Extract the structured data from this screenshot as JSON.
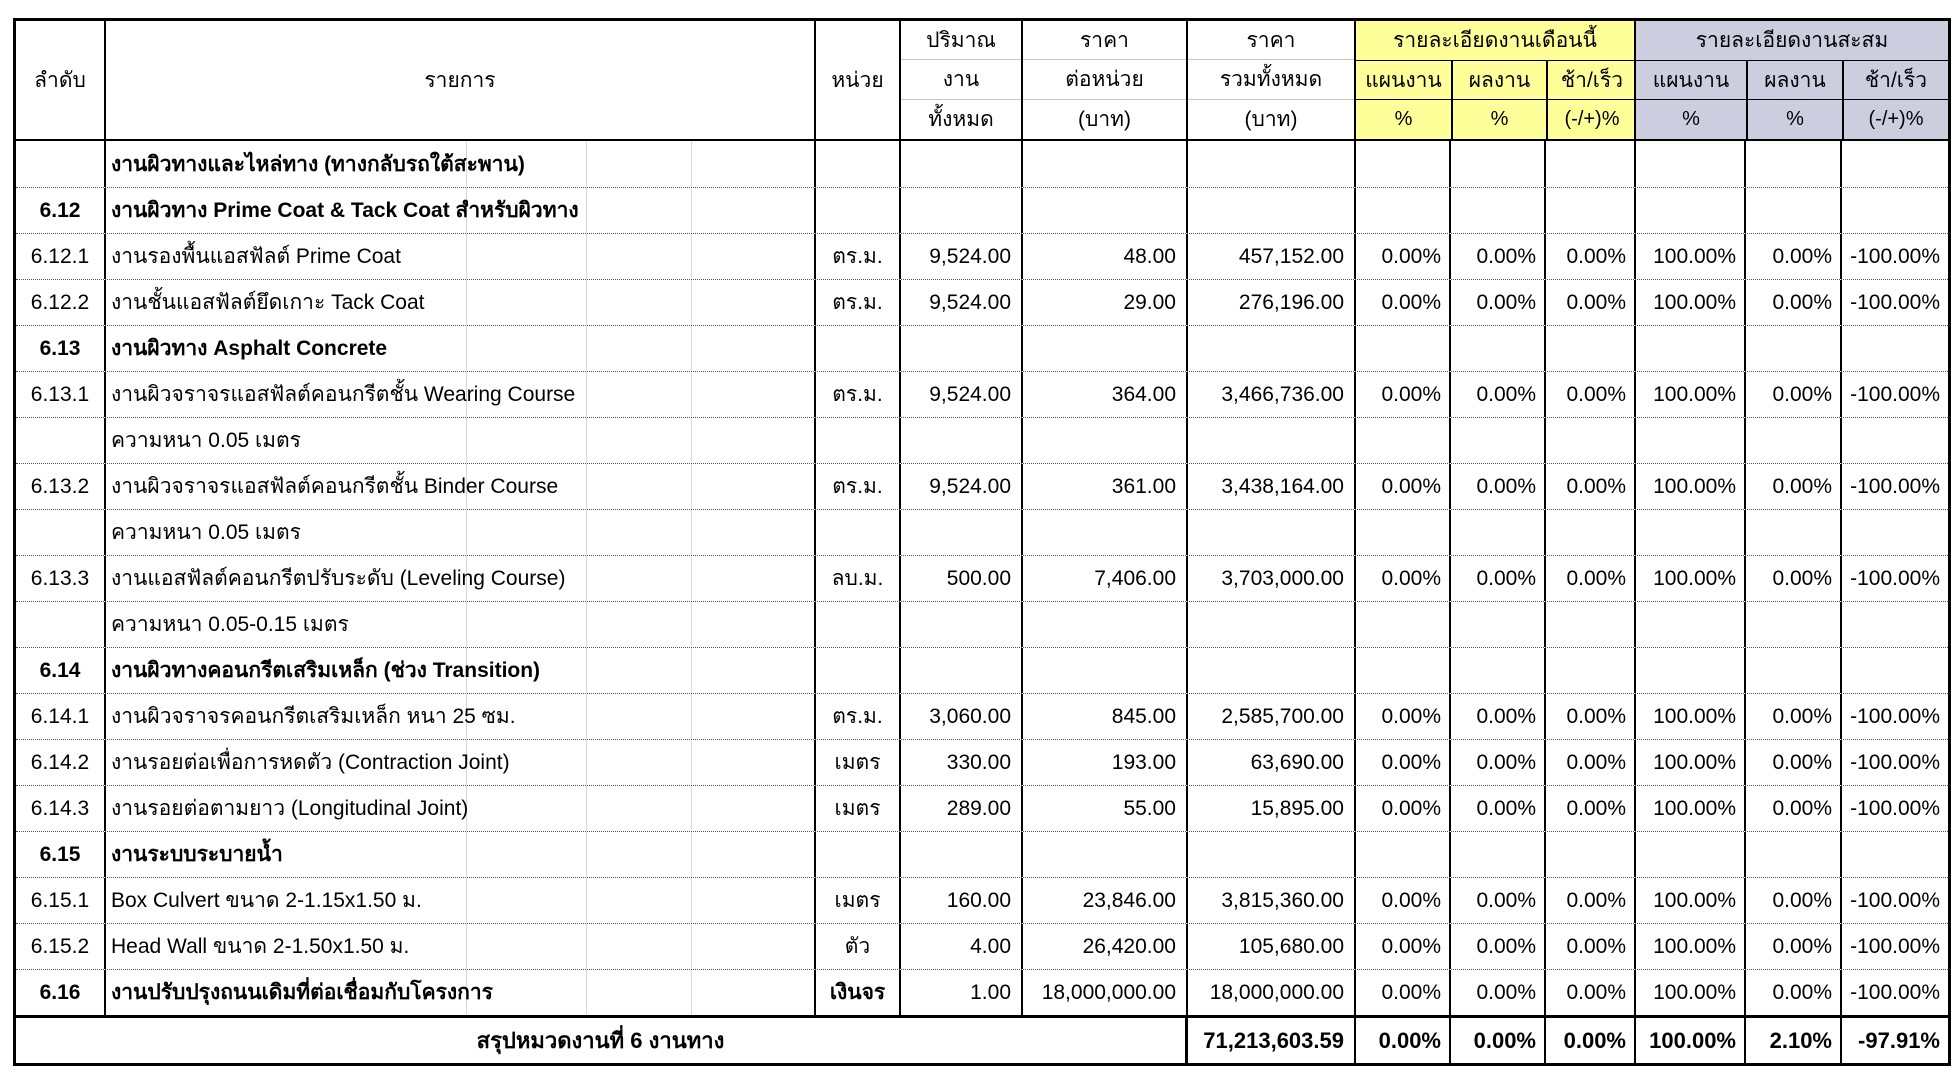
{
  "colors": {
    "month_header_bg": "#FFFF99",
    "cum_header_bg": "#CDCDE0"
  },
  "header": {
    "col_no": "ลำดับ",
    "col_item": "รายการ",
    "col_unit": "หน่วย",
    "col_qty": [
      "ปริมาณ",
      "งาน",
      "ทั้งหมด"
    ],
    "col_unit_price": [
      "ราคา",
      "ต่อหน่วย",
      "(บาท)"
    ],
    "col_total_price": [
      "ราคา",
      "รวมทั้งหมด",
      "(บาท)"
    ],
    "month_group": {
      "title": "รายละเอียดงานเดือนนี้",
      "cols": [
        {
          "label": "แผนงาน",
          "sub": "%"
        },
        {
          "label": "ผลงาน",
          "sub": "%"
        },
        {
          "label": "ช้า/เร็ว",
          "sub": "(-/+)%"
        }
      ]
    },
    "cum_group": {
      "title": "รายละเอียดงานสะสม",
      "cols": [
        {
          "label": "แผนงาน",
          "sub": "%"
        },
        {
          "label": "ผลงาน",
          "sub": "%"
        },
        {
          "label": "ช้า/เร็ว",
          "sub": "(-/+)%"
        }
      ]
    }
  },
  "rows": [
    {
      "no": "",
      "item": "งานผิวทางและไหล่ทาง (ทางกลับรถใต้สะพาน)",
      "unit": "",
      "qty": "",
      "price": "",
      "total": "",
      "mp": "",
      "ma": "",
      "md": "",
      "cp": "",
      "ca": "",
      "cd": "",
      "bold": true
    },
    {
      "no": "6.12",
      "item": "งานผิวทาง Prime Coat & Tack Coat สำหรับผิวทาง",
      "unit": "",
      "qty": "",
      "price": "",
      "total": "",
      "mp": "",
      "ma": "",
      "md": "",
      "cp": "",
      "ca": "",
      "cd": "",
      "bold": true
    },
    {
      "no": "6.12.1",
      "item": "งานรองพื้นแอสฟัลต์ Prime Coat",
      "unit": "ตร.ม.",
      "qty": "9,524.00",
      "price": "48.00",
      "total": "457,152.00",
      "mp": "0.00%",
      "ma": "0.00%",
      "md": "0.00%",
      "cp": "100.00%",
      "ca": "0.00%",
      "cd": "-100.00%",
      "bold": false
    },
    {
      "no": "6.12.2",
      "item": "งานชั้นแอสฟัลต์ยึดเกาะ Tack Coat",
      "unit": "ตร.ม.",
      "qty": "9,524.00",
      "price": "29.00",
      "total": "276,196.00",
      "mp": "0.00%",
      "ma": "0.00%",
      "md": "0.00%",
      "cp": "100.00%",
      "ca": "0.00%",
      "cd": "-100.00%",
      "bold": false
    },
    {
      "no": "6.13",
      "item": "งานผิวทาง Asphalt Concrete",
      "unit": "",
      "qty": "",
      "price": "",
      "total": "",
      "mp": "",
      "ma": "",
      "md": "",
      "cp": "",
      "ca": "",
      "cd": "",
      "bold": true
    },
    {
      "no": "6.13.1",
      "item": "งานผิวจราจรแอสฟัลต์คอนกรีตชั้น  Wearing Course",
      "unit": "ตร.ม.",
      "qty": "9,524.00",
      "price": "364.00",
      "total": "3,466,736.00",
      "mp": "0.00%",
      "ma": "0.00%",
      "md": "0.00%",
      "cp": "100.00%",
      "ca": "0.00%",
      "cd": "-100.00%",
      "bold": false
    },
    {
      "no": "",
      "item": "ความหนา 0.05 เมตร",
      "unit": "",
      "qty": "",
      "price": "",
      "total": "",
      "mp": "",
      "ma": "",
      "md": "",
      "cp": "",
      "ca": "",
      "cd": "",
      "bold": false
    },
    {
      "no": "6.13.2",
      "item": "งานผิวจราจรแอสฟัลต์คอนกรีตชั้น  Binder Course",
      "unit": "ตร.ม.",
      "qty": "9,524.00",
      "price": "361.00",
      "total": "3,438,164.00",
      "mp": "0.00%",
      "ma": "0.00%",
      "md": "0.00%",
      "cp": "100.00%",
      "ca": "0.00%",
      "cd": "-100.00%",
      "bold": false
    },
    {
      "no": "",
      "item": "ความหนา 0.05 เมตร",
      "unit": "",
      "qty": "",
      "price": "",
      "total": "",
      "mp": "",
      "ma": "",
      "md": "",
      "cp": "",
      "ca": "",
      "cd": "",
      "bold": false
    },
    {
      "no": "6.13.3",
      "item": "งานแอสฟัลต์คอนกรีตปรับระดับ (Leveling Course)",
      "unit": "ลบ.ม.",
      "qty": "500.00",
      "price": "7,406.00",
      "total": "3,703,000.00",
      "mp": "0.00%",
      "ma": "0.00%",
      "md": "0.00%",
      "cp": "100.00%",
      "ca": "0.00%",
      "cd": "-100.00%",
      "bold": false
    },
    {
      "no": "",
      "item": "ความหนา 0.05-0.15 เมตร",
      "unit": "",
      "qty": "",
      "price": "",
      "total": "",
      "mp": "",
      "ma": "",
      "md": "",
      "cp": "",
      "ca": "",
      "cd": "",
      "bold": false
    },
    {
      "no": "6.14",
      "item": "งานผิวทางคอนกรีตเสริมเหล็ก (ช่วง Transition)",
      "unit": "",
      "qty": "",
      "price": "",
      "total": "",
      "mp": "",
      "ma": "",
      "md": "",
      "cp": "",
      "ca": "",
      "cd": "",
      "bold": true
    },
    {
      "no": "6.14.1",
      "item": "งานผิวจราจรคอนกรีตเสริมเหล็ก หนา 25 ซม.",
      "unit": "ตร.ม.",
      "qty": "3,060.00",
      "price": "845.00",
      "total": "2,585,700.00",
      "mp": "0.00%",
      "ma": "0.00%",
      "md": "0.00%",
      "cp": "100.00%",
      "ca": "0.00%",
      "cd": "-100.00%",
      "bold": false
    },
    {
      "no": "6.14.2",
      "item": "งานรอยต่อเพื่อการหดตัว (Contraction Joint)",
      "unit": "เมตร",
      "qty": "330.00",
      "price": "193.00",
      "total": "63,690.00",
      "mp": "0.00%",
      "ma": "0.00%",
      "md": "0.00%",
      "cp": "100.00%",
      "ca": "0.00%",
      "cd": "-100.00%",
      "bold": false
    },
    {
      "no": "6.14.3",
      "item": "งานรอยต่อตามยาว (Longitudinal Joint)",
      "unit": "เมตร",
      "qty": "289.00",
      "price": "55.00",
      "total": "15,895.00",
      "mp": "0.00%",
      "ma": "0.00%",
      "md": "0.00%",
      "cp": "100.00%",
      "ca": "0.00%",
      "cd": "-100.00%",
      "bold": false
    },
    {
      "no": "6.15",
      "item": "งานระบบระบายน้ำ",
      "unit": "",
      "qty": "",
      "price": "",
      "total": "",
      "mp": "",
      "ma": "",
      "md": "",
      "cp": "",
      "ca": "",
      "cd": "",
      "bold": true
    },
    {
      "no": "6.15.1",
      "item": "Box Culvert ขนาด 2-1.15x1.50 ม.",
      "unit": "เมตร",
      "qty": "160.00",
      "price": "23,846.00",
      "total": "3,815,360.00",
      "mp": "0.00%",
      "ma": "0.00%",
      "md": "0.00%",
      "cp": "100.00%",
      "ca": "0.00%",
      "cd": "-100.00%",
      "bold": false
    },
    {
      "no": "6.15.2",
      "item": "Head Wall ขนาด 2-1.50x1.50 ม.",
      "unit": "ตัว",
      "qty": "4.00",
      "price": "26,420.00",
      "total": "105,680.00",
      "mp": "0.00%",
      "ma": "0.00%",
      "md": "0.00%",
      "cp": "100.00%",
      "ca": "0.00%",
      "cd": "-100.00%",
      "bold": false
    },
    {
      "no": "6.16",
      "item": "งานปรับปรุงถนนเดิมที่ต่อเชื่อมกับโครงการ",
      "unit": "เงินจร",
      "qty": "1.00",
      "price": "18,000,000.00",
      "total": "18,000,000.00",
      "mp": "0.00%",
      "ma": "0.00%",
      "md": "0.00%",
      "cp": "100.00%",
      "ca": "0.00%",
      "cd": "-100.00%",
      "bold": true
    }
  ],
  "summary": {
    "label": "สรุปหมวดงานที่ 6 งานทาง",
    "total": "71,213,603.59",
    "mp": "0.00%",
    "ma": "0.00%",
    "md": "0.00%",
    "cp": "100.00%",
    "ca": "2.10%",
    "cd": "-97.91%"
  }
}
